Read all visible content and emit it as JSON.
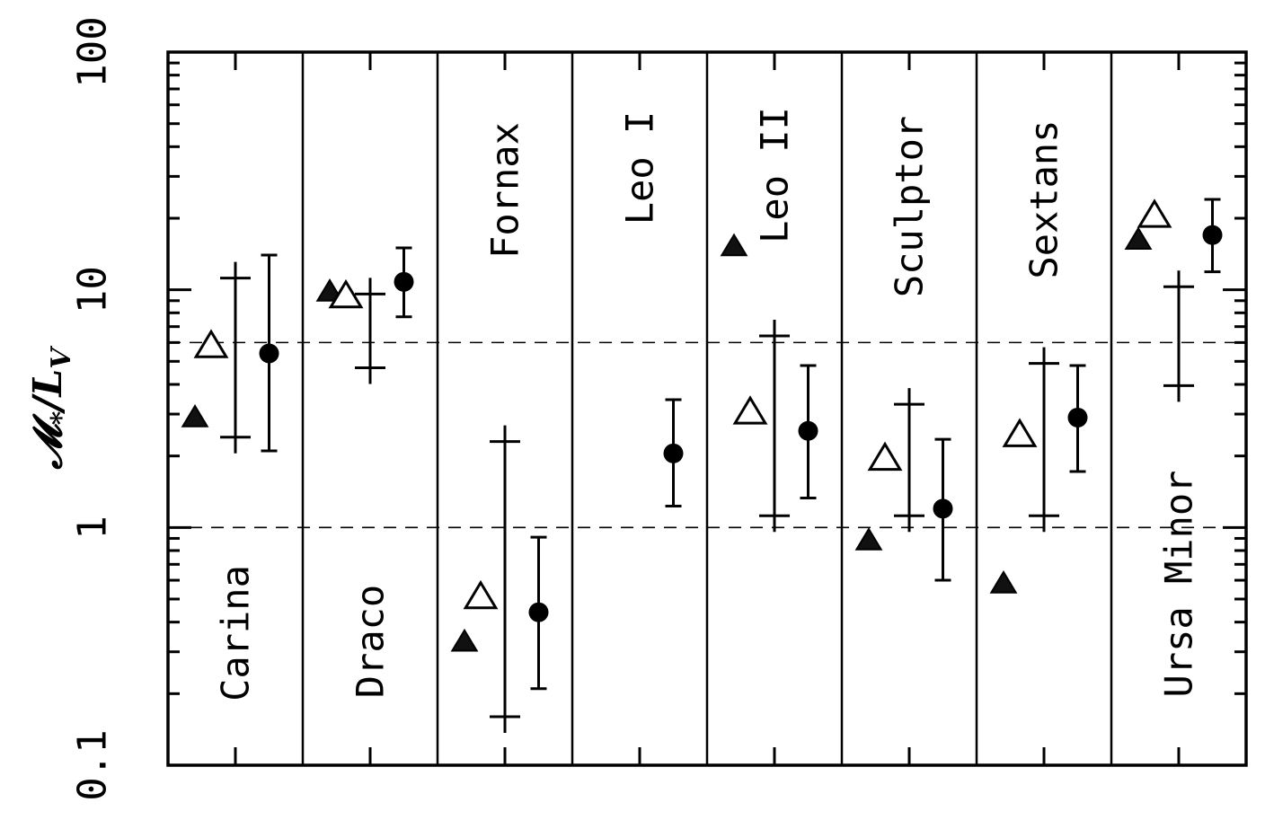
{
  "chart_data": {
    "type": "scatter",
    "ylabel": "𝓜*/L_V",
    "yscale": "log",
    "ylim": [
      0.1,
      100
    ],
    "ytick_labels": [
      "0.1",
      "1",
      "10",
      "100"
    ],
    "yticks": [
      0.1,
      1,
      10,
      100
    ],
    "reference_lines": [
      1,
      6
    ],
    "grid": false,
    "categories": [
      "Carina",
      "Draco",
      "Fornax",
      "Leo I",
      "Leo II",
      "Sculptor",
      "Sextans",
      "Ursa Minor"
    ],
    "series": [
      {
        "marker": "filled-triangle",
        "values": [
          2.9,
          9.8,
          0.33,
          null,
          15.2,
          0.88,
          0.58,
          16.2
        ]
      },
      {
        "marker": "open-triangle",
        "values": [
          5.8,
          9.4,
          0.51,
          null,
          3.05,
          1.95,
          2.45,
          20.5
        ]
      },
      {
        "marker": "plus-range",
        "values": [
          {
            "low": 2.4,
            "high": 11.2
          },
          {
            "low": 4.7,
            "high": 9.6
          },
          {
            "low": 0.16,
            "high": 2.3
          },
          null,
          {
            "low": 1.12,
            "high": 6.4
          },
          {
            "low": 1.12,
            "high": 3.3
          },
          {
            "low": 1.12,
            "high": 4.9
          },
          {
            "low": 3.95,
            "high": 10.3
          }
        ]
      },
      {
        "marker": "filled-circle",
        "values": [
          {
            "value": 5.4,
            "low": 2.1,
            "high": 14.0
          },
          {
            "value": 10.8,
            "low": 7.7,
            "high": 15.0
          },
          {
            "value": 0.44,
            "low": 0.21,
            "high": 0.91
          },
          {
            "value": 2.05,
            "low": 1.23,
            "high": 3.45
          },
          {
            "value": 2.55,
            "low": 1.33,
            "high": 4.8
          },
          {
            "value": 1.2,
            "low": 0.6,
            "high": 2.35
          },
          {
            "value": 2.9,
            "low": 1.72,
            "high": 4.8
          },
          {
            "value": 17.0,
            "low": 11.9,
            "high": 24.0
          }
        ]
      }
    ]
  }
}
